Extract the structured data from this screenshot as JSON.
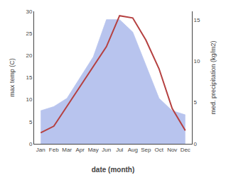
{
  "chart_data": {
    "type": "line",
    "categories": [
      "Jan",
      "Feb",
      "Mar",
      "Apr",
      "May",
      "Jun",
      "Jul",
      "Aug",
      "Sep",
      "Oct",
      "Nov",
      "Dec"
    ],
    "series": [
      {
        "type": "area",
        "axis": "y2",
        "color": "#b8c4ee",
        "values": [
          4.0,
          4.5,
          5.5,
          8.0,
          10.5,
          15.0,
          15.0,
          13.5,
          9.5,
          5.5,
          4.0,
          3.5
        ]
      },
      {
        "type": "line",
        "axis": "y",
        "color": "#b54040",
        "values": [
          2.5,
          4.0,
          8.5,
          13.0,
          17.5,
          22.0,
          29.0,
          28.5,
          23.5,
          17.0,
          8.0,
          3.0
        ]
      }
    ],
    "xlabel": "date (month)",
    "ylabel": "max temp (C)",
    "y2label": "med. precipitation (kg/m2)",
    "ylim": [
      0,
      30
    ],
    "yticks": [
      0,
      5,
      10,
      15,
      20,
      25,
      30
    ],
    "y2lim": [
      0,
      16
    ],
    "y2ticks": [
      0,
      5,
      10,
      15
    ],
    "grid": false
  }
}
